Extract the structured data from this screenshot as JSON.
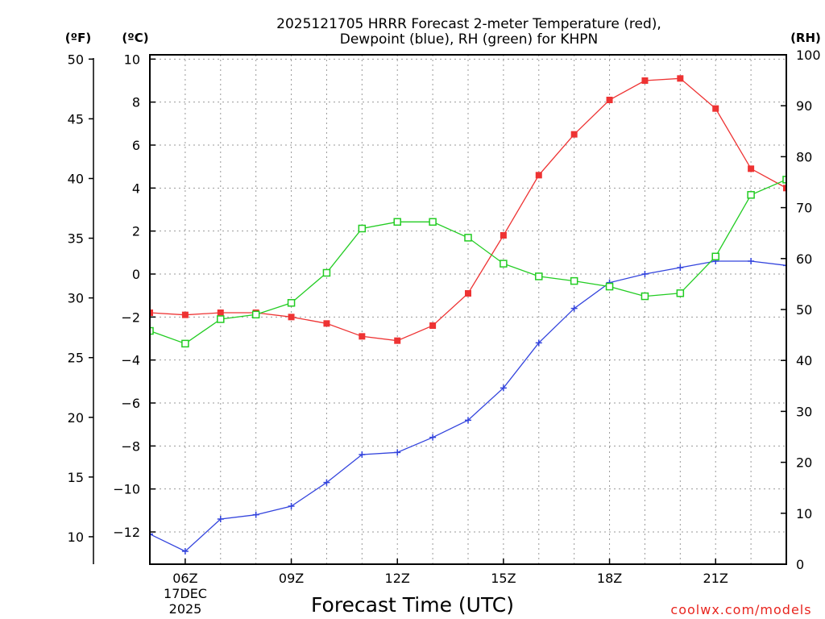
{
  "chart_data": {
    "type": "line",
    "title_line1": "2025121705 HRRR Forecast 2-meter Temperature (red),",
    "title_line2": "Dewpoint (blue), RH (green) for KHPN",
    "xlabel": "Forecast Time (UTC)",
    "credit": "coolwx.com/models",
    "date_label_line1": "17DEC",
    "date_label_line2": "2025",
    "unit_left_f": "(ºF)",
    "unit_left_c": "(ºC)",
    "unit_right_rh": "(RH)",
    "x_range": [
      5,
      23
    ],
    "x_ticks": [
      6,
      9,
      12,
      15,
      18,
      21
    ],
    "x_tick_labels": [
      "06Z",
      "09Z",
      "12Z",
      "15Z",
      "18Z",
      "21Z"
    ],
    "ylim_c": [
      -13.5,
      10.2
    ],
    "yticks_c": [
      10,
      8,
      6,
      4,
      2,
      0,
      -2,
      -4,
      -6,
      -8,
      -10,
      -12
    ],
    "ytick_labels_c": [
      "10",
      "8",
      "6",
      "4",
      "2",
      "0",
      "−2",
      "−4",
      "−6",
      "−8",
      "−10",
      "−12"
    ],
    "yticks_f": [
      50,
      45,
      40,
      35,
      30,
      25,
      20,
      15,
      10
    ],
    "ytick_labels_f": [
      "50",
      "45",
      "40",
      "35",
      "30",
      "25",
      "20",
      "15",
      "10"
    ],
    "yticks_rh": [
      100,
      90,
      80,
      70,
      60,
      50,
      40,
      30,
      20,
      10,
      0
    ],
    "ytick_labels_rh": [
      "100",
      "90",
      "80",
      "70",
      "60",
      "50",
      "40",
      "30",
      "20",
      "10",
      "0"
    ],
    "ylim_rh": [
      0,
      100
    ],
    "grid": true,
    "series": [
      {
        "name": "Temperature",
        "unit": "C",
        "color": "#ee3333",
        "marker": "filled-square",
        "x": [
          5,
          6,
          7,
          8,
          9,
          10,
          11,
          12,
          13,
          14,
          15,
          16,
          17,
          18,
          19,
          20,
          21,
          22,
          23
        ],
        "values": [
          -1.8,
          -1.9,
          -1.8,
          -1.8,
          -2.0,
          -2.3,
          -2.9,
          -3.1,
          -2.4,
          -0.9,
          1.8,
          4.6,
          6.5,
          8.1,
          9.0,
          9.1,
          7.7,
          4.9,
          4.0
        ]
      },
      {
        "name": "Dewpoint",
        "unit": "C",
        "color": "#3344dd",
        "marker": "plus",
        "x": [
          5,
          6,
          7,
          8,
          9,
          10,
          11,
          12,
          13,
          14,
          15,
          16,
          17,
          18,
          19,
          20,
          21,
          22,
          23
        ],
        "values": [
          -12.1,
          -12.9,
          -11.4,
          -11.2,
          -10.8,
          -9.7,
          -8.4,
          -8.3,
          -7.6,
          -6.8,
          -5.3,
          -3.2,
          -1.6,
          -0.4,
          0.0,
          0.3,
          0.6,
          0.6,
          0.4
        ]
      },
      {
        "name": "RH",
        "unit": "%",
        "color": "#22cc22",
        "marker": "open-square",
        "x": [
          5,
          6,
          7,
          8,
          9,
          10,
          11,
          12,
          13,
          14,
          15,
          16,
          17,
          18,
          19,
          20,
          21,
          22,
          23
        ],
        "values": [
          45.8,
          43.3,
          48.1,
          49.0,
          51.3,
          57.2,
          65.9,
          67.2,
          67.2,
          64.1,
          59.0,
          56.5,
          55.6,
          54.5,
          52.6,
          53.2,
          60.4,
          72.5,
          75.5
        ]
      }
    ]
  }
}
